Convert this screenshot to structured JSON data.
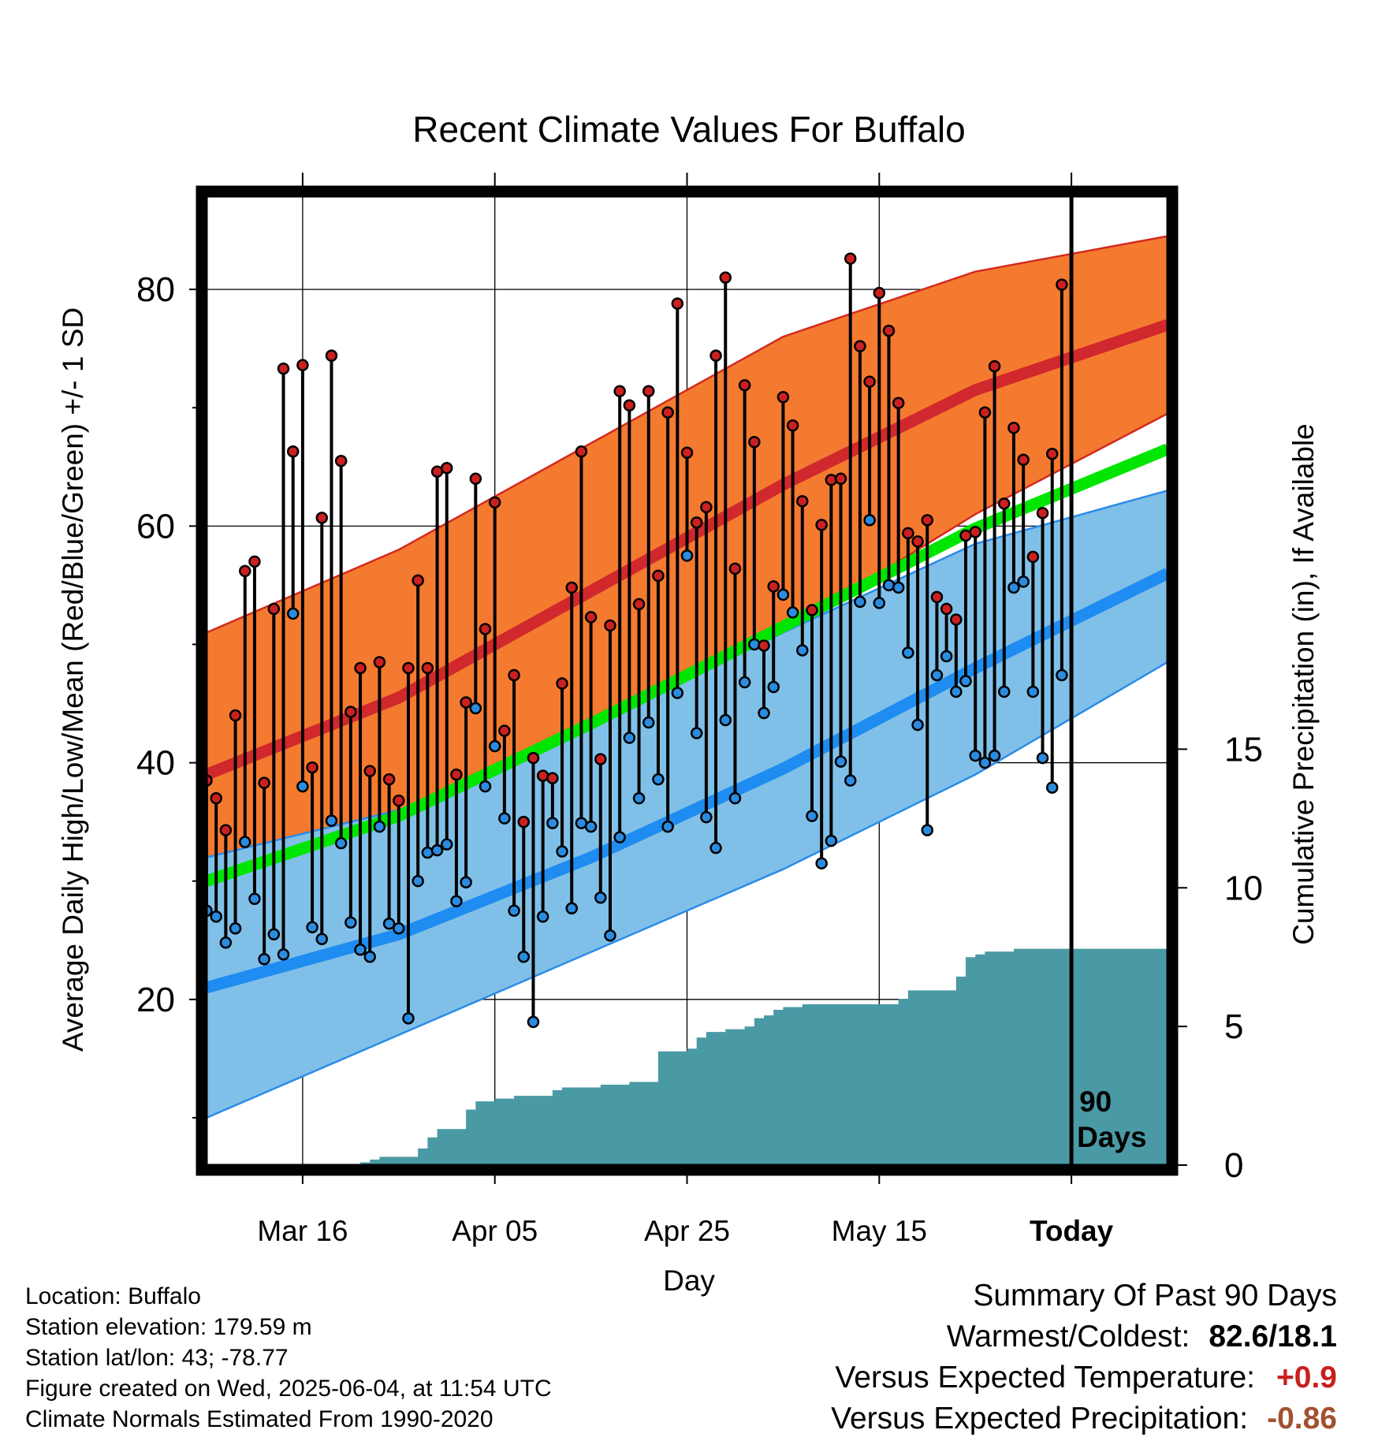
{
  "chart_data": {
    "type": "line",
    "title": "Recent Climate Values For Buffalo",
    "xlabel": "Day",
    "ylabel": "Average Daily High/Low/Mean (Red/Blue/Green) +/- 1 SD",
    "y2label": "Cumulative Precipitation (in), If Available",
    "x_range": [
      0,
      100
    ],
    "ylim": [
      6,
      88
    ],
    "y2lim": [
      0,
      35
    ],
    "y_ticks": [
      20,
      40,
      60,
      80
    ],
    "y2_ticks": [
      0,
      5,
      10,
      15
    ],
    "x_ticks": [
      {
        "label": "Mar 16",
        "day": 10
      },
      {
        "label": "Apr 05",
        "day": 30
      },
      {
        "label": "Apr 25",
        "day": 50
      },
      {
        "label": "May 15",
        "day": 70
      },
      {
        "label": "Today",
        "day": 90
      }
    ],
    "today_marker": {
      "day": 90,
      "label_line1": "90",
      "label_line2": "Days"
    },
    "normals": {
      "days": [
        0,
        20,
        40,
        60,
        80,
        100
      ],
      "high_mean": [
        39,
        45.5,
        54.5,
        63.5,
        71.5,
        77
      ],
      "high_sd_upper": [
        51,
        58,
        67,
        76,
        81.5,
        84.5
      ],
      "high_sd_lower": [
        27.5,
        34,
        42,
        51,
        61,
        69.5
      ],
      "low_mean": [
        21,
        25.5,
        32,
        39.5,
        48,
        56
      ],
      "low_sd_upper": [
        32,
        36,
        43,
        51,
        58.5,
        63
      ],
      "low_sd_lower": [
        10,
        17,
        24,
        31,
        39,
        48.5
      ],
      "mean": [
        30,
        35.5,
        43.3,
        51.5,
        59.8,
        66.5
      ]
    },
    "series": [
      {
        "name": "High",
        "values": [
          38.5,
          37,
          34.3,
          44,
          56.2,
          57,
          38.3,
          53,
          73.3,
          66.3,
          73.6,
          39.6,
          60.7,
          74.4,
          65.5,
          44.3,
          48,
          39.3,
          48.5,
          38.6,
          36.8,
          48,
          55.4,
          48,
          64.6,
          64.9,
          39,
          45.1,
          64,
          51.3,
          62,
          42.7,
          47.4,
          35,
          40.4,
          38.9,
          38.7,
          46.7,
          54.8,
          66.3,
          52.3,
          40.3,
          51.6,
          71.4,
          70.2,
          53.4,
          71.4,
          55.8,
          69.6,
          78.8,
          66.2,
          60.3,
          61.6,
          74.4,
          81,
          56.4,
          71.9,
          67.1,
          49.9,
          54.9,
          70.9,
          68.5,
          62.1,
          52.9,
          60.1,
          63.9,
          64,
          82.6,
          75.2,
          72.2,
          79.7,
          76.5,
          70.4,
          59.4,
          58.7,
          60.5,
          54,
          53,
          52.1,
          59.2,
          59.5,
          69.6,
          73.5,
          61.9,
          68.3,
          65.6,
          57.4,
          61.1,
          66.1,
          80.4
        ]
      },
      {
        "name": "Low",
        "values": [
          27.5,
          27,
          24.8,
          26,
          33.3,
          28.5,
          23.4,
          25.5,
          23.8,
          52.6,
          38,
          26.1,
          25.1,
          35.1,
          33.2,
          26.5,
          24.2,
          23.6,
          34.6,
          26.4,
          26,
          18.4,
          30,
          32.4,
          32.6,
          33.1,
          28.3,
          29.9,
          44.6,
          38,
          41.4,
          35.3,
          27.5,
          23.6,
          18.1,
          27,
          34.9,
          32.5,
          27.7,
          34.9,
          34.6,
          28.6,
          25.4,
          33.7,
          42.1,
          37,
          43.4,
          38.6,
          34.6,
          45.9,
          57.5,
          42.5,
          35.4,
          32.8,
          43.6,
          37,
          46.8,
          50,
          44.2,
          46.4,
          54.2,
          52.7,
          49.5,
          35.5,
          31.5,
          33.4,
          40.1,
          38.5,
          53.6,
          60.5,
          53.5,
          55,
          54.8,
          49.3,
          43.2,
          34.3,
          47.4,
          49,
          46,
          46.9,
          40.6,
          40,
          40.6,
          46,
          54.8,
          55.3,
          46,
          40.4,
          37.9,
          47.4
        ]
      },
      {
        "name": "Precipitation",
        "values": [
          0,
          0,
          0,
          0,
          0,
          0,
          0,
          0,
          0,
          0,
          0,
          0,
          0,
          0,
          0,
          0,
          0.1,
          0.2,
          0.3,
          0.3,
          0.3,
          0.3,
          0.6,
          1,
          1.3,
          1.3,
          1.3,
          2,
          2.3,
          2.3,
          2.4,
          2.4,
          2.5,
          2.5,
          2.5,
          2.5,
          2.7,
          2.8,
          2.8,
          2.8,
          2.8,
          2.9,
          2.9,
          2.9,
          3,
          3,
          3,
          4.1,
          4.1,
          4.1,
          4.2,
          4.6,
          4.8,
          4.8,
          4.9,
          4.9,
          5,
          5.3,
          5.4,
          5.6,
          5.7,
          5.7,
          5.8,
          5.8,
          5.8,
          5.8,
          5.8,
          5.8,
          5.8,
          5.8,
          5.8,
          5.8,
          6,
          6.3,
          6.3,
          6.3,
          6.3,
          6.3,
          6.8,
          7.5,
          7.6,
          7.7,
          7.7,
          7.7,
          7.8,
          7.8,
          7.8,
          7.8,
          7.8,
          7.8,
          7.8,
          7.8,
          7.8,
          7.8,
          7.8,
          7.8,
          7.8,
          7.8,
          7.8,
          7.8
        ]
      }
    ]
  },
  "info": {
    "location": "Location: Buffalo",
    "elevation": "Station elevation: 179.59 m",
    "latlon": "Station lat/lon: 43; -78.77",
    "created": "Figure created on Wed, 2025-06-04, at 11:54 UTC",
    "normals": "Climate Normals Estimated From 1990-2020"
  },
  "summary": {
    "title": "Summary Of Past 90 Days",
    "warmest_label": "Warmest/Coldest:",
    "warmest_value": "82.6/18.1",
    "temp_label": "Versus Expected Temperature:",
    "temp_value": "+0.9",
    "precip_label": "Versus Expected Precipitation:",
    "precip_value": "-0.86"
  },
  "colors": {
    "high_band": "#f47a30",
    "high_band_edge": "#d42a1e",
    "high_line": "#d0282c",
    "low_band": "#80c0e8",
    "low_band_edge": "#2a8ce8",
    "low_line": "#1e8cf0",
    "mean_line": "#00e600",
    "precip": "#4a9aa5",
    "high_dot": "#cc2020",
    "low_dot": "#2a8ce0"
  }
}
